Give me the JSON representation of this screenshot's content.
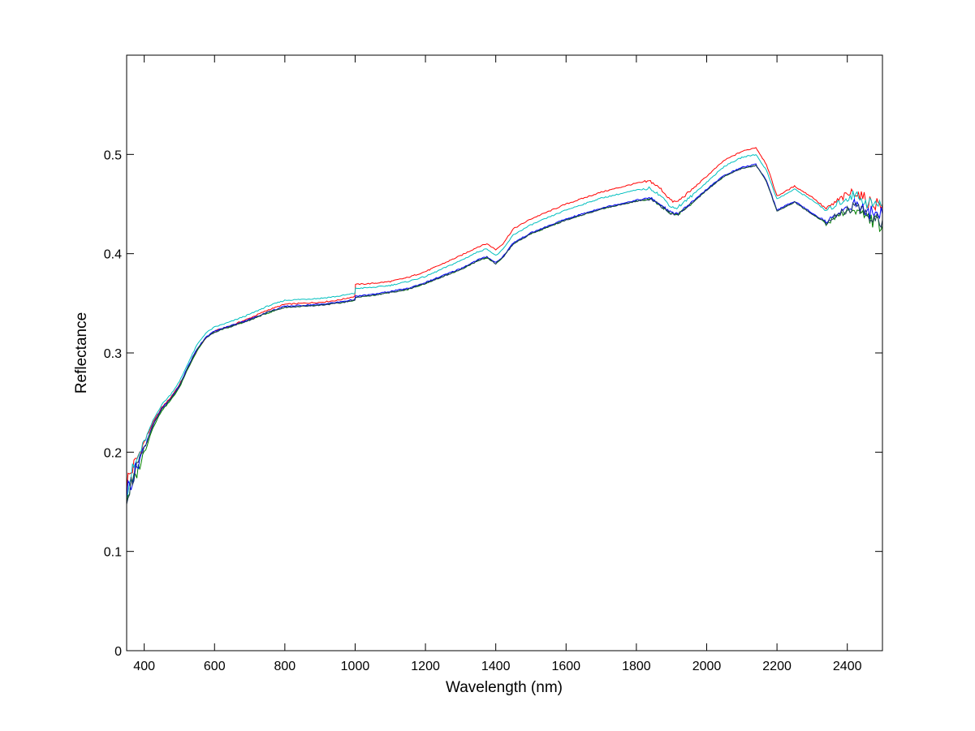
{
  "chart_data": {
    "type": "line",
    "title": "",
    "xlabel": "Wavelength (nm)",
    "ylabel": "Reflectance",
    "xlim": [
      350,
      2500
    ],
    "ylim": [
      0,
      0.6
    ],
    "grid": false,
    "legend": "none",
    "x_ticks": [
      400,
      600,
      800,
      1000,
      1200,
      1400,
      1600,
      1800,
      2000,
      2200,
      2400
    ],
    "y_ticks": [
      0,
      0.1,
      0.2,
      0.3,
      0.4,
      0.5
    ],
    "x_tick_labels": [
      "400",
      "600",
      "800",
      "1000",
      "1200",
      "1400",
      "1600",
      "1800",
      "2000",
      "2200",
      "2400"
    ],
    "y_tick_labels": [
      "0",
      "0.1",
      "0.2",
      "0.3",
      "0.4",
      "0.5"
    ],
    "series": [
      {
        "color": "#ff0000",
        "x": [
          350,
          375,
          400,
          425,
          450,
          475,
          500,
          525,
          550,
          575,
          600,
          650,
          700,
          750,
          800,
          850,
          900,
          950,
          999,
          1001,
          1050,
          1100,
          1150,
          1200,
          1250,
          1300,
          1350,
          1375,
          1400,
          1420,
          1450,
          1500,
          1600,
          1700,
          1800,
          1840,
          1870,
          1900,
          1915,
          1950,
          2000,
          2050,
          2100,
          2140,
          2170,
          2200,
          2250,
          2300,
          2340,
          2380,
          2420,
          2460,
          2500
        ],
        "y": [
          0.17,
          0.19,
          0.21,
          0.23,
          0.245,
          0.255,
          0.268,
          0.285,
          0.302,
          0.315,
          0.322,
          0.328,
          0.335,
          0.343,
          0.349,
          0.35,
          0.351,
          0.353,
          0.357,
          0.369,
          0.37,
          0.372,
          0.376,
          0.382,
          0.39,
          0.398,
          0.407,
          0.41,
          0.404,
          0.41,
          0.425,
          0.435,
          0.45,
          0.462,
          0.471,
          0.473,
          0.465,
          0.453,
          0.452,
          0.462,
          0.478,
          0.494,
          0.503,
          0.507,
          0.49,
          0.458,
          0.468,
          0.457,
          0.445,
          0.455,
          0.463,
          0.452,
          0.45
        ]
      },
      {
        "color": "#00bfbf",
        "x": [
          350,
          375,
          400,
          425,
          450,
          475,
          500,
          525,
          550,
          575,
          600,
          650,
          700,
          750,
          800,
          850,
          900,
          950,
          999,
          1001,
          1050,
          1100,
          1150,
          1200,
          1250,
          1300,
          1350,
          1375,
          1400,
          1420,
          1450,
          1500,
          1600,
          1700,
          1800,
          1840,
          1870,
          1900,
          1915,
          1950,
          2000,
          2050,
          2100,
          2140,
          2170,
          2200,
          2250,
          2300,
          2340,
          2380,
          2420,
          2460,
          2500
        ],
        "y": [
          0.165,
          0.188,
          0.21,
          0.232,
          0.248,
          0.258,
          0.271,
          0.29,
          0.308,
          0.32,
          0.326,
          0.332,
          0.339,
          0.347,
          0.353,
          0.354,
          0.355,
          0.357,
          0.36,
          0.365,
          0.366,
          0.368,
          0.372,
          0.377,
          0.385,
          0.393,
          0.402,
          0.405,
          0.398,
          0.404,
          0.419,
          0.429,
          0.444,
          0.456,
          0.464,
          0.466,
          0.458,
          0.447,
          0.446,
          0.456,
          0.472,
          0.488,
          0.497,
          0.5,
          0.484,
          0.455,
          0.465,
          0.454,
          0.443,
          0.452,
          0.46,
          0.451,
          0.448
        ]
      },
      {
        "color": "#008000",
        "x": [
          350,
          375,
          400,
          425,
          450,
          475,
          500,
          525,
          550,
          575,
          600,
          650,
          700,
          750,
          800,
          850,
          900,
          950,
          999,
          1001,
          1050,
          1100,
          1150,
          1200,
          1250,
          1300,
          1350,
          1375,
          1400,
          1420,
          1450,
          1500,
          1600,
          1700,
          1800,
          1840,
          1870,
          1900,
          1915,
          1950,
          2000,
          2050,
          2100,
          2140,
          2170,
          2200,
          2250,
          2300,
          2340,
          2380,
          2420,
          2460,
          2500
        ],
        "y": [
          0.155,
          0.175,
          0.2,
          0.225,
          0.242,
          0.252,
          0.265,
          0.285,
          0.302,
          0.315,
          0.321,
          0.327,
          0.333,
          0.34,
          0.346,
          0.347,
          0.348,
          0.35,
          0.353,
          0.356,
          0.358,
          0.361,
          0.364,
          0.37,
          0.377,
          0.384,
          0.393,
          0.396,
          0.39,
          0.396,
          0.41,
          0.42,
          0.434,
          0.445,
          0.453,
          0.455,
          0.448,
          0.44,
          0.439,
          0.448,
          0.464,
          0.478,
          0.486,
          0.489,
          0.473,
          0.443,
          0.452,
          0.44,
          0.43,
          0.44,
          0.445,
          0.436,
          0.428
        ]
      },
      {
        "color": "#0000ff",
        "x": [
          350,
          375,
          400,
          425,
          450,
          475,
          500,
          525,
          550,
          575,
          600,
          650,
          700,
          750,
          800,
          850,
          900,
          950,
          999,
          1001,
          1050,
          1100,
          1150,
          1200,
          1250,
          1300,
          1350,
          1375,
          1400,
          1420,
          1450,
          1500,
          1600,
          1700,
          1800,
          1840,
          1870,
          1900,
          1915,
          1950,
          2000,
          2050,
          2100,
          2140,
          2170,
          2200,
          2250,
          2300,
          2340,
          2380,
          2420,
          2460,
          2500
        ],
        "y": [
          0.16,
          0.182,
          0.205,
          0.228,
          0.244,
          0.254,
          0.267,
          0.287,
          0.304,
          0.316,
          0.322,
          0.328,
          0.334,
          0.341,
          0.347,
          0.348,
          0.349,
          0.351,
          0.354,
          0.357,
          0.359,
          0.362,
          0.365,
          0.371,
          0.378,
          0.385,
          0.394,
          0.397,
          0.391,
          0.397,
          0.411,
          0.421,
          0.435,
          0.446,
          0.454,
          0.456,
          0.449,
          0.441,
          0.44,
          0.449,
          0.465,
          0.479,
          0.487,
          0.49,
          0.474,
          0.444,
          0.453,
          0.441,
          0.432,
          0.443,
          0.45,
          0.442,
          0.44
        ]
      },
      {
        "color": "#1f3a5f",
        "x": [
          350,
          375,
          400,
          425,
          450,
          475,
          500,
          525,
          550,
          575,
          600,
          650,
          700,
          750,
          800,
          850,
          900,
          950,
          999,
          1001,
          1050,
          1100,
          1150,
          1200,
          1250,
          1300,
          1350,
          1375,
          1400,
          1420,
          1450,
          1500,
          1600,
          1700,
          1800,
          1840,
          1870,
          1900,
          1915,
          1950,
          2000,
          2050,
          2100,
          2140,
          2170,
          2200,
          2250,
          2300,
          2340,
          2380,
          2420,
          2460,
          2500
        ],
        "y": [
          0.158,
          0.18,
          0.203,
          0.227,
          0.243,
          0.253,
          0.266,
          0.286,
          0.303,
          0.315,
          0.321,
          0.327,
          0.333,
          0.341,
          0.346,
          0.347,
          0.348,
          0.35,
          0.353,
          0.356,
          0.358,
          0.361,
          0.364,
          0.37,
          0.377,
          0.384,
          0.393,
          0.396,
          0.39,
          0.396,
          0.41,
          0.42,
          0.434,
          0.445,
          0.453,
          0.455,
          0.448,
          0.44,
          0.439,
          0.448,
          0.464,
          0.478,
          0.486,
          0.489,
          0.473,
          0.443,
          0.452,
          0.44,
          0.431,
          0.441,
          0.447,
          0.439,
          0.434
        ]
      }
    ]
  }
}
